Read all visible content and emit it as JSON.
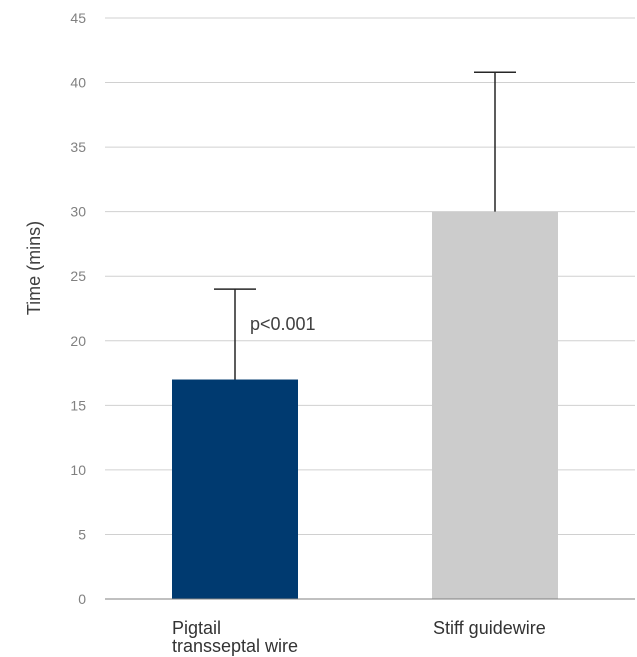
{
  "chart_data": {
    "type": "bar",
    "categories": [
      [
        "Pigtail",
        "transseptal wire"
      ],
      [
        "Stiff guidewire"
      ]
    ],
    "values": [
      17,
      30
    ],
    "error_upper": [
      24,
      40.8
    ],
    "bar_colors": [
      "#003a70",
      "#cccccc"
    ],
    "xlabel": "",
    "ylabel": "Time (mins)",
    "ylim": [
      0,
      45
    ],
    "yticks": [
      0,
      5,
      10,
      15,
      20,
      25,
      30,
      35,
      40,
      45
    ],
    "grid": true,
    "annotation": "p<0.001"
  }
}
